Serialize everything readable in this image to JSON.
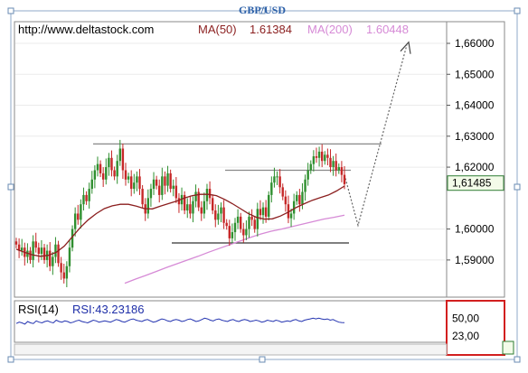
{
  "chart_data": {
    "type": "candlestick",
    "title": "GBP/USD",
    "source": "http://www.deltastock.com",
    "ma50": {
      "label": "MA(50)",
      "value": "1.61384",
      "color": "#8b1f1f",
      "points": [
        1.5935,
        1.5925,
        1.5917,
        1.5912,
        1.5915,
        1.5925,
        1.5945,
        1.5975,
        1.6005,
        1.603,
        1.605,
        1.6066,
        1.6075,
        1.608,
        1.608,
        1.6074,
        1.6066,
        1.6065,
        1.6074,
        1.6082,
        1.609,
        1.61,
        1.6108,
        1.6112,
        1.6112,
        1.6108,
        1.6096,
        1.6082,
        1.6066,
        1.605,
        1.6038,
        1.6032,
        1.6033,
        1.6042,
        1.6055,
        1.607,
        1.6082,
        1.6093,
        1.6102,
        1.611,
        1.6123,
        1.6139
      ]
    },
    "ma200": {
      "label": "MA(200)",
      "value": "1.60448",
      "color": "#d68ad6",
      "points": [
        1.5825,
        1.5838,
        1.585,
        1.5863,
        1.5876,
        1.5888,
        1.59,
        1.5912,
        1.5925,
        1.5937,
        1.5949,
        1.5961,
        1.5973,
        1.5984,
        1.5993,
        1.6,
        1.6008,
        1.6016,
        1.6024,
        1.6032,
        1.6038,
        1.6045
      ]
    },
    "price_axis": {
      "min": 1.578,
      "max": 1.667,
      "ticks": [
        "1,66000",
        "1,65000",
        "1,64000",
        "1,63000",
        "1,62000",
        "1,60000",
        "1,59000"
      ],
      "tick_values": [
        1.66,
        1.65,
        1.64,
        1.63,
        1.62,
        1.6,
        1.59
      ]
    },
    "last_price": {
      "label": "1,61485",
      "value": 1.61485
    },
    "closes": [
      1.595,
      1.593,
      1.594,
      1.591,
      1.593,
      1.59,
      1.596,
      1.594,
      1.592,
      1.594,
      1.59,
      1.593,
      1.588,
      1.591,
      1.595,
      1.589,
      1.586,
      1.584,
      1.588,
      1.594,
      1.6,
      1.605,
      1.603,
      1.608,
      1.611,
      1.609,
      1.613,
      1.616,
      1.619,
      1.621,
      1.618,
      1.616,
      1.62,
      1.623,
      1.619,
      1.617,
      1.622,
      1.626,
      1.619,
      1.616,
      1.617,
      1.613,
      1.615,
      1.617,
      1.613,
      1.608,
      1.605,
      1.61,
      1.613,
      1.616,
      1.614,
      1.611,
      1.617,
      1.614,
      1.618,
      1.613,
      1.614,
      1.61,
      1.608,
      1.611,
      1.606,
      1.608,
      1.605,
      1.609,
      1.612,
      1.607,
      1.605,
      1.609,
      1.613,
      1.61,
      1.606,
      1.603,
      1.605,
      1.607,
      1.602,
      1.601,
      1.597,
      1.599,
      1.602,
      1.604,
      1.6,
      1.598,
      1.6,
      1.604,
      1.603,
      1.6,
      1.6065,
      1.6045,
      1.607,
      1.604,
      1.611,
      1.615,
      1.617,
      1.617,
      1.6135,
      1.6105,
      1.608,
      1.6035,
      1.605,
      1.609,
      1.611,
      1.608,
      1.612,
      1.616,
      1.619,
      1.621,
      1.6235,
      1.623,
      1.625,
      1.622,
      1.624,
      1.623,
      1.62,
      1.622,
      1.619,
      1.62,
      1.6175,
      1.6145
    ],
    "annotations": {
      "resistance": 1.6275,
      "upper_range": 1.619,
      "support": 1.5955,
      "projection": [
        [
          1.6175,
          1.6012
        ],
        [
          1.6012,
          1.6595
        ]
      ]
    },
    "rsi": {
      "label": "RSI(14)",
      "value_label": "RSI:43.23186",
      "level_labels": [
        "50,00",
        "23,00"
      ],
      "level_values": [
        50,
        23
      ],
      "min": 15,
      "max": 75,
      "points": [
        42,
        44,
        43,
        41,
        45,
        43,
        42,
        46,
        44,
        43,
        45,
        46,
        44,
        43,
        47,
        45,
        44,
        46,
        45,
        43,
        44,
        46,
        47,
        45,
        44,
        43,
        45,
        47,
        46,
        44,
        45,
        46,
        45,
        44,
        46,
        48,
        47,
        45,
        44,
        46,
        48,
        49,
        47,
        46,
        45,
        47,
        48,
        46,
        44,
        45,
        47,
        49,
        48,
        46,
        45,
        47,
        48,
        47,
        45,
        46,
        48,
        49,
        47,
        45,
        46,
        48,
        50,
        49,
        47,
        46,
        48,
        49,
        47,
        46,
        45,
        47,
        48,
        46,
        45,
        47,
        48,
        47,
        45,
        46,
        47,
        46,
        44,
        45,
        47,
        46,
        45,
        47,
        46,
        44,
        45,
        46,
        45,
        47,
        48,
        46,
        45,
        47,
        48,
        49,
        50,
        49,
        50,
        49,
        48,
        49,
        47,
        48,
        46,
        44,
        43.5,
        43.2
      ]
    },
    "grid": true
  }
}
